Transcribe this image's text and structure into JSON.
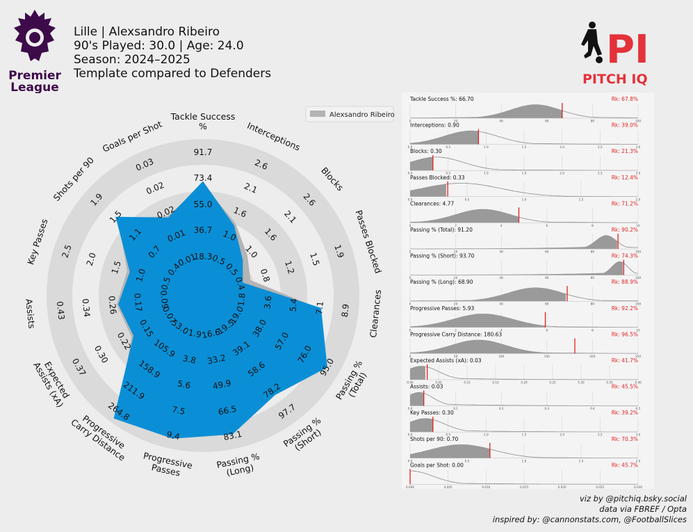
{
  "header": {
    "line1": "Lille | Alexsandro Ribeiro",
    "line2": "90's Played: 30.0 | Age: 24.0",
    "line3": "Season: 2024–2025",
    "line4": "Template compared to Defenders"
  },
  "logos": {
    "league_line1": "Premier",
    "league_line2": "League",
    "brand_big": "PI",
    "brand_text": "PITCH IQ"
  },
  "colors": {
    "player_fill": "#0a8fd6",
    "comparison_fill": "#b4b4b4",
    "ring_fill": "#dadada",
    "marker": "#e02020",
    "brand_red": "#e4323a",
    "league_purple": "#3d0a4a"
  },
  "legend": {
    "player": "Alexsandro Ribeiro"
  },
  "credits": {
    "line1": "viz by @pitchiq.bsky.social",
    "line2": "data via FBREF / Opta",
    "line3": "inspired by: @cannonstats.com, @FootballSlices"
  },
  "chart_data": [
    {
      "type": "radar",
      "legend_position": "top-right",
      "axes": [
        {
          "label": "Tackle Success\n%",
          "ticks": [
            "18.3",
            "36.7",
            "55.0",
            "73.4",
            "91.7"
          ],
          "player_pct": 67.8
        },
        {
          "label": "Interceptions",
          "ticks": [
            "0.5",
            "1.0",
            "1.6",
            "2.1",
            "2.6"
          ],
          "player_pct": 39.0
        },
        {
          "label": "Blocks",
          "ticks": [
            "0.5",
            "1.0",
            "1.6",
            "2.1",
            "2.6"
          ],
          "player_pct": 21.3
        },
        {
          "label": "Passes Blocked",
          "ticks": [
            "0.4",
            "0.8",
            "1.2",
            "1.5",
            "1.9"
          ],
          "player_pct": 12.4
        },
        {
          "label": "Clearances",
          "ticks": [
            "1.8",
            "3.6",
            "5.4",
            "7.1",
            "8.9"
          ],
          "player_pct": 71.2
        },
        {
          "label": "Passing %\n(Total)",
          "ticks": [
            "19.0",
            "38.0",
            "57.0",
            "76.0",
            "95.0"
          ],
          "player_pct": 90.2
        },
        {
          "label": "Passing %\n(Short)",
          "ticks": [
            "19.5",
            "39.1",
            "58.6",
            "78.2",
            "97.7"
          ],
          "player_pct": 74.3
        },
        {
          "label": "Passing %\n(Long)",
          "ticks": [
            "16.6",
            "33.2",
            "49.9",
            "66.5",
            "83.1"
          ],
          "player_pct": 88.9
        },
        {
          "label": "Progressive\nPasses",
          "ticks": [
            "1.9",
            "3.8",
            "5.6",
            "7.5",
            "9.4"
          ],
          "player_pct": 92.2
        },
        {
          "label": "Progressive\nCarry Distance",
          "ticks": [
            "53.0",
            "105.9",
            "158.9",
            "211.9",
            "264.8"
          ],
          "player_pct": 96.5
        },
        {
          "label": "Expected\nAssists (xA)",
          "ticks": [
            "0.07",
            "0.15",
            "0.22",
            "0.30",
            "0.37"
          ],
          "player_pct": 41.7
        },
        {
          "label": "Assists",
          "ticks": [
            "0.09",
            "0.17",
            "0.26",
            "0.34",
            "0.43"
          ],
          "player_pct": 45.5
        },
        {
          "label": "Key Passes",
          "ticks": [
            "0.5",
            "1.0",
            "1.5",
            "2.0",
            "2.5"
          ],
          "player_pct": 39.2
        },
        {
          "label": "Shots per 90",
          "ticks": [
            "0.4",
            "0.7",
            "1.1",
            "1.5",
            "1.9"
          ],
          "player_pct": 70.3
        },
        {
          "label": "Goals per Shot",
          "ticks": [
            "0.01",
            "0.01",
            "0.02",
            "0.02",
            "0.03"
          ],
          "player_pct": 45.7
        }
      ],
      "player_values": [
        66.7,
        0.9,
        0.3,
        0.33,
        4.77,
        91.2,
        93.7,
        68.9,
        5.93,
        180.63,
        0.03,
        0.03,
        0.3,
        0.7,
        0.0
      ],
      "radial_range": [
        0,
        100
      ]
    },
    {
      "type": "area",
      "panels": [
        {
          "label": "Tackle Success %: 66.70",
          "rank": "Rk: 67.8%",
          "value": 66.7,
          "xlim": [
            0,
            100
          ],
          "xticks": [
            "0",
            "20",
            "40",
            "60",
            "80",
            "100"
          ],
          "peak": 55,
          "spread": 11
        },
        {
          "label": "Interceptions: 0.90",
          "rank": "Rk: 39.0%",
          "value": 0.9,
          "xlim": [
            0,
            3.0
          ],
          "xticks": [
            "0.0",
            "0.5",
            "1.0",
            "1.5",
            "2.0",
            "2.5",
            "3.0"
          ],
          "peak": 0.8,
          "spread": 0.35
        },
        {
          "label": "Blocks: 0.30",
          "rank": "Rk: 21.3%",
          "value": 0.3,
          "xlim": [
            0,
            3.0
          ],
          "xticks": [
            "0.0",
            "0.5",
            "1.0",
            "1.5",
            "2.0",
            "2.5",
            "3.0"
          ],
          "peak": 0.35,
          "spread": 0.35
        },
        {
          "label": "Passes Blocked: 0.33",
          "rank": "Rk: 12.4%",
          "value": 0.33,
          "xlim": [
            0,
            2.0
          ],
          "xticks": [
            "0.0",
            "0.5",
            "1.0",
            "1.5",
            "2.0"
          ],
          "peak": 0.45,
          "spread": 0.35
        },
        {
          "label": "Clearances: 4.77",
          "rank": "Rk: 71.2%",
          "value": 4.77,
          "xlim": [
            0,
            10
          ],
          "xticks": [
            "0",
            "2",
            "4",
            "6",
            "8",
            "10"
          ],
          "peak": 3.2,
          "spread": 1.2
        },
        {
          "label": "Passing % (Total): 91.20",
          "rank": "Rk: 90.2%",
          "value": 91.2,
          "xlim": [
            0,
            100
          ],
          "xticks": [
            "0",
            "20",
            "40",
            "60",
            "80",
            "100"
          ],
          "peak": 86,
          "spread": 4.5
        },
        {
          "label": "Passing % (Short): 93.70",
          "rank": "Rk: 74.3%",
          "value": 93.7,
          "xlim": [
            0,
            100
          ],
          "xticks": [
            "0",
            "20",
            "40",
            "60",
            "80",
            "100"
          ],
          "peak": 92,
          "spread": 3.5
        },
        {
          "label": "Passing % (Long): 68.90",
          "rank": "Rk: 88.9%",
          "value": 68.9,
          "xlim": [
            0,
            100
          ],
          "xticks": [
            "0",
            "20",
            "40",
            "60",
            "80",
            "100"
          ],
          "peak": 55,
          "spread": 12
        },
        {
          "label": "Progressive Passes: 5.93",
          "rank": "Rk: 92.2%",
          "value": 5.93,
          "xlim": [
            0,
            10
          ],
          "xticks": [
            "0",
            "2",
            "4",
            "6",
            "8",
            "10"
          ],
          "peak": 3.2,
          "spread": 1.3
        },
        {
          "label": "Progressive Carry Distance: 180.63",
          "rank": "Rk: 96.5%",
          "value": 180.63,
          "xlim": [
            0,
            250
          ],
          "xticks": [
            "0",
            "50",
            "100",
            "150",
            "200",
            "250"
          ],
          "peak": 75,
          "spread": 30
        },
        {
          "label": "Expected Assists (xA): 0.03",
          "rank": "Rk: 41.7%",
          "value": 0.03,
          "xlim": [
            0,
            0.4
          ],
          "xticks": [
            "0.00",
            "0.05",
            "0.10",
            "0.15",
            "0.20",
            "0.25",
            "0.30",
            "0.35",
            "0.40"
          ],
          "peak": 0.02,
          "spread": 0.03
        },
        {
          "label": "Assists: 0.03",
          "rank": "Rk: 45.5%",
          "value": 0.03,
          "xlim": [
            0,
            0.5
          ],
          "xticks": [
            "0.0",
            "0.1",
            "0.2",
            "0.3",
            "0.4",
            "0.5"
          ],
          "peak": 0.02,
          "spread": 0.03
        },
        {
          "label": "Key Passes: 0.30",
          "rank": "Rk: 39.2%",
          "value": 0.3,
          "xlim": [
            0,
            3.0
          ],
          "xticks": [
            "0.0",
            "0.5",
            "1.0",
            "1.5",
            "2.0",
            "2.5",
            "3.0"
          ],
          "peak": 0.2,
          "spread": 0.25
        },
        {
          "label": "Shots per 90: 0.70",
          "rank": "Rk: 70.3%",
          "value": 0.7,
          "xlim": [
            0,
            2.0
          ],
          "xticks": [
            "0.0",
            "0.5",
            "1.0",
            "1.5",
            "2.0"
          ],
          "peak": 0.45,
          "spread": 0.28
        },
        {
          "label": "Goals per Shot: 0.00",
          "rank": "Rk: 45.7%",
          "value": 0.0,
          "xlim": [
            0,
            0.03
          ],
          "xticks": [
            "0.000",
            "0.005",
            "0.010",
            "0.015",
            "0.020",
            "0.025",
            "0.030"
          ],
          "peak": 0.0,
          "spread": 0.003
        }
      ]
    }
  ]
}
